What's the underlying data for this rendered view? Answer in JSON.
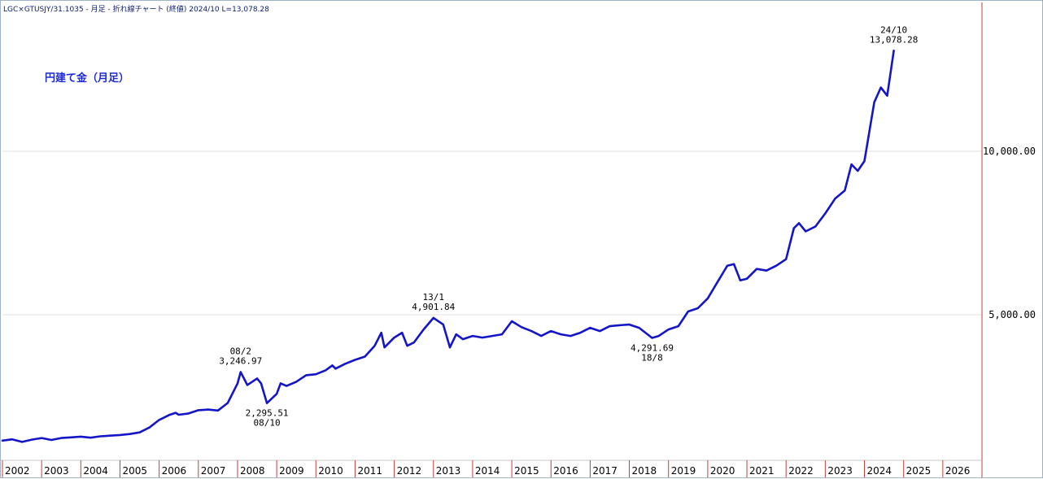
{
  "header": {
    "text": "LGC×GTUSJY/31.1035 - 月足 - 折れ線チャート (終値)  2024/10 L=13,078.28"
  },
  "chart_data": {
    "type": "line",
    "title": "円建て金（月足）",
    "xlabel": "",
    "ylabel": "",
    "x_ticks": [
      "2002",
      "2003",
      "2004",
      "2005",
      "2006",
      "2007",
      "2008",
      "2009",
      "2010",
      "2011",
      "2012",
      "2013",
      "2014",
      "2015",
      "2016",
      "2017",
      "2018",
      "2019",
      "2020",
      "2021",
      "2022",
      "2023",
      "2024",
      "2025",
      "2026"
    ],
    "y_ticks": [
      {
        "value": 5000,
        "label": "5,000.00"
      },
      {
        "value": 10000,
        "label": "10,000.00"
      }
    ],
    "ylim": [
      1000,
      14500
    ],
    "xlim": [
      2002.0,
      2027.0
    ],
    "colors": {
      "line": "#1515c8",
      "grid": "#e2e2e2",
      "year_divider": "#cc3a3a"
    },
    "annotations": [
      {
        "x": 2008.08,
        "y": 3246.97,
        "lines": [
          "08/2",
          "3,246.97"
        ],
        "position": "above"
      },
      {
        "x": 2008.75,
        "y": 2295.51,
        "lines": [
          "2,295.51",
          "08/10"
        ],
        "position": "below"
      },
      {
        "x": 2013.0,
        "y": 4901.84,
        "lines": [
          "13/1",
          "4,901.84"
        ],
        "position": "above"
      },
      {
        "x": 2018.58,
        "y": 4291.69,
        "lines": [
          "4,291.69",
          "18/8"
        ],
        "position": "below"
      },
      {
        "x": 2024.75,
        "y": 13078.28,
        "lines": [
          "24/10",
          "13,078.28"
        ],
        "position": "above"
      }
    ],
    "series": [
      {
        "values": [
          [
            2002.0,
            1150
          ],
          [
            2002.25,
            1190
          ],
          [
            2002.5,
            1110
          ],
          [
            2002.75,
            1180
          ],
          [
            2003.0,
            1230
          ],
          [
            2003.25,
            1170
          ],
          [
            2003.5,
            1230
          ],
          [
            2003.75,
            1250
          ],
          [
            2004.0,
            1270
          ],
          [
            2004.25,
            1240
          ],
          [
            2004.5,
            1280
          ],
          [
            2004.75,
            1300
          ],
          [
            2005.0,
            1320
          ],
          [
            2005.25,
            1350
          ],
          [
            2005.5,
            1400
          ],
          [
            2005.75,
            1550
          ],
          [
            2006.0,
            1780
          ],
          [
            2006.25,
            1930
          ],
          [
            2006.42,
            2000
          ],
          [
            2006.5,
            1940
          ],
          [
            2006.75,
            1980
          ],
          [
            2007.0,
            2080
          ],
          [
            2007.25,
            2100
          ],
          [
            2007.5,
            2070
          ],
          [
            2007.75,
            2300
          ],
          [
            2008.0,
            2900
          ],
          [
            2008.08,
            3246.97
          ],
          [
            2008.25,
            2850
          ],
          [
            2008.5,
            3050
          ],
          [
            2008.6,
            2900
          ],
          [
            2008.75,
            2295.51
          ],
          [
            2009.0,
            2580
          ],
          [
            2009.1,
            2900
          ],
          [
            2009.25,
            2820
          ],
          [
            2009.5,
            2950
          ],
          [
            2009.75,
            3150
          ],
          [
            2010.0,
            3180
          ],
          [
            2010.25,
            3300
          ],
          [
            2010.42,
            3450
          ],
          [
            2010.5,
            3350
          ],
          [
            2010.75,
            3500
          ],
          [
            2011.0,
            3620
          ],
          [
            2011.25,
            3720
          ],
          [
            2011.5,
            4050
          ],
          [
            2011.67,
            4450
          ],
          [
            2011.75,
            4000
          ],
          [
            2012.0,
            4300
          ],
          [
            2012.2,
            4450
          ],
          [
            2012.33,
            4050
          ],
          [
            2012.5,
            4150
          ],
          [
            2012.75,
            4550
          ],
          [
            2013.0,
            4901.84
          ],
          [
            2013.25,
            4700
          ],
          [
            2013.42,
            4000
          ],
          [
            2013.58,
            4400
          ],
          [
            2013.75,
            4250
          ],
          [
            2014.0,
            4350
          ],
          [
            2014.25,
            4300
          ],
          [
            2014.5,
            4350
          ],
          [
            2014.75,
            4400
          ],
          [
            2015.0,
            4800
          ],
          [
            2015.25,
            4620
          ],
          [
            2015.5,
            4500
          ],
          [
            2015.75,
            4350
          ],
          [
            2016.0,
            4500
          ],
          [
            2016.25,
            4400
          ],
          [
            2016.5,
            4350
          ],
          [
            2016.75,
            4450
          ],
          [
            2017.0,
            4600
          ],
          [
            2017.25,
            4500
          ],
          [
            2017.5,
            4650
          ],
          [
            2017.75,
            4680
          ],
          [
            2018.0,
            4700
          ],
          [
            2018.25,
            4600
          ],
          [
            2018.58,
            4291.69
          ],
          [
            2018.75,
            4350
          ],
          [
            2019.0,
            4550
          ],
          [
            2019.25,
            4650
          ],
          [
            2019.5,
            5100
          ],
          [
            2019.75,
            5200
          ],
          [
            2020.0,
            5500
          ],
          [
            2020.25,
            6000
          ],
          [
            2020.5,
            6500
          ],
          [
            2020.67,
            6550
          ],
          [
            2020.83,
            6050
          ],
          [
            2021.0,
            6100
          ],
          [
            2021.25,
            6400
          ],
          [
            2021.5,
            6350
          ],
          [
            2021.75,
            6500
          ],
          [
            2022.0,
            6700
          ],
          [
            2022.2,
            7650
          ],
          [
            2022.33,
            7800
          ],
          [
            2022.5,
            7550
          ],
          [
            2022.75,
            7700
          ],
          [
            2023.0,
            8100
          ],
          [
            2023.25,
            8550
          ],
          [
            2023.5,
            8800
          ],
          [
            2023.67,
            9600
          ],
          [
            2023.83,
            9400
          ],
          [
            2024.0,
            9700
          ],
          [
            2024.25,
            11500
          ],
          [
            2024.42,
            11950
          ],
          [
            2024.58,
            11700
          ],
          [
            2024.75,
            13078.28
          ]
        ]
      }
    ]
  }
}
